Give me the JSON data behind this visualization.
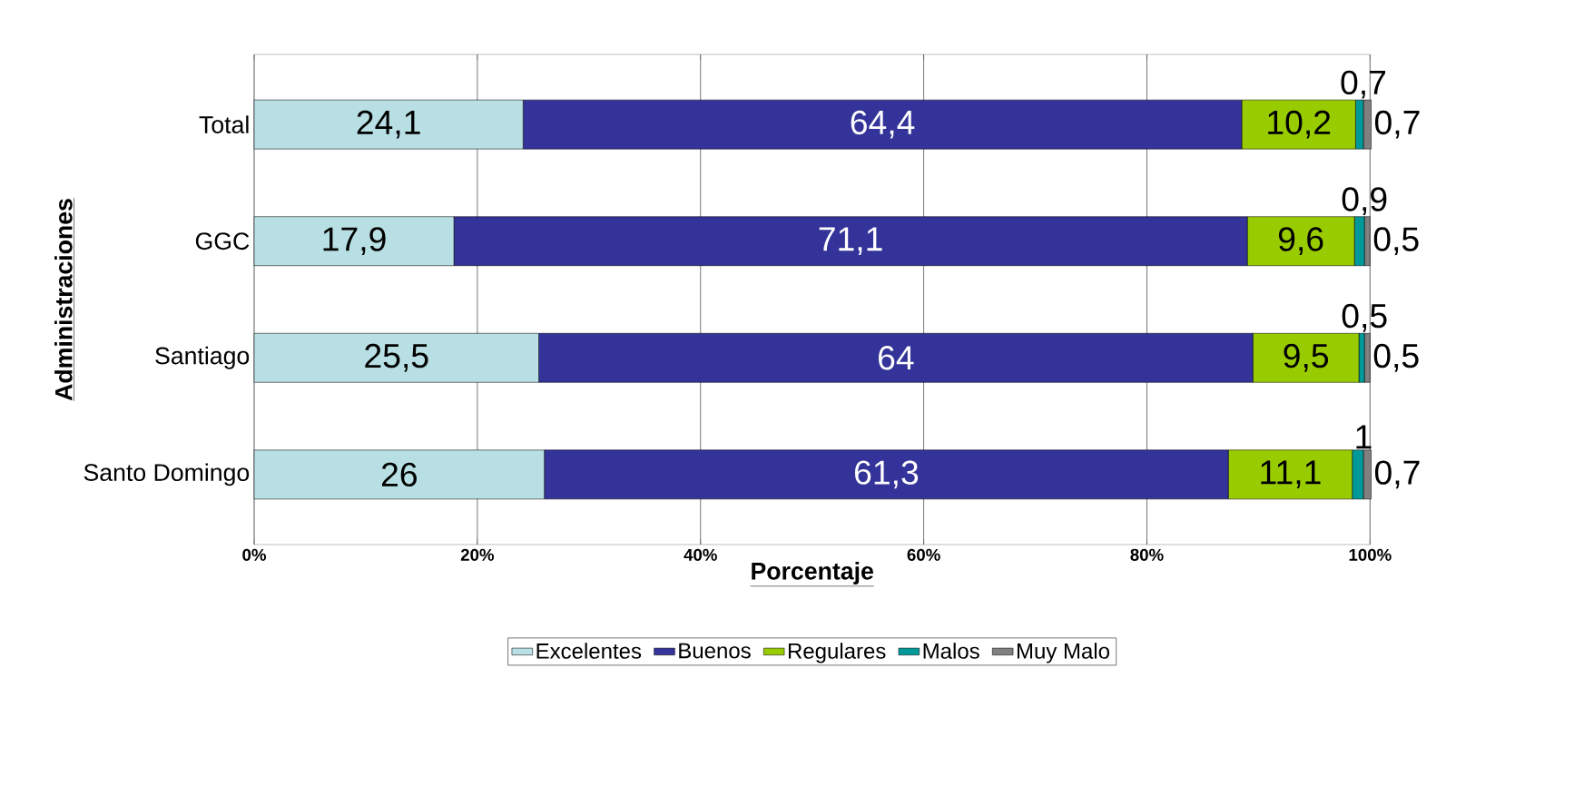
{
  "chart_data": {
    "type": "bar",
    "orientation": "horizontal",
    "stacked": true,
    "xlabel": "Porcentaje",
    "ylabel": "Administraciones",
    "categories": [
      "Total",
      "GGC",
      "Santiago",
      "Santo Domingo"
    ],
    "series": [
      {
        "name": "Excelentes",
        "color": "#b8e0e4",
        "values": [
          24.1,
          17.9,
          25.5,
          26
        ],
        "value_labels": [
          "24,1",
          "17,9",
          "25,5",
          "26"
        ]
      },
      {
        "name": "Buenos",
        "color": "#333399",
        "values": [
          64.4,
          71.1,
          64,
          61.3
        ],
        "value_labels": [
          "64,4",
          "71,1",
          "64",
          "61,3"
        ]
      },
      {
        "name": "Regulares",
        "color": "#99cc00",
        "values": [
          10.2,
          9.6,
          9.5,
          11.1
        ],
        "value_labels": [
          "10,2",
          "9,6",
          "9,5",
          "11,1"
        ]
      },
      {
        "name": "Malos",
        "color": "#009999",
        "values": [
          0.7,
          0.9,
          0.5,
          1
        ],
        "value_labels": [
          "0,7",
          "0,9",
          "0,5",
          "1"
        ]
      },
      {
        "name": "Muy Malo",
        "color": "#808080",
        "values": [
          0.7,
          0.5,
          0.5,
          0.7
        ],
        "value_labels": [
          "0,7",
          "0,5",
          "0,5",
          "0,7"
        ]
      }
    ],
    "xlim": [
      0,
      100
    ],
    "xticks": [
      {
        "value": 0,
        "label": "0%"
      },
      {
        "value": 20,
        "label": "20%"
      },
      {
        "value": 40,
        "label": "40%"
      },
      {
        "value": 60,
        "label": "60%"
      },
      {
        "value": 80,
        "label": "80%"
      },
      {
        "value": 100,
        "label": "100%"
      }
    ],
    "grid": "x",
    "legend": "bottom"
  }
}
